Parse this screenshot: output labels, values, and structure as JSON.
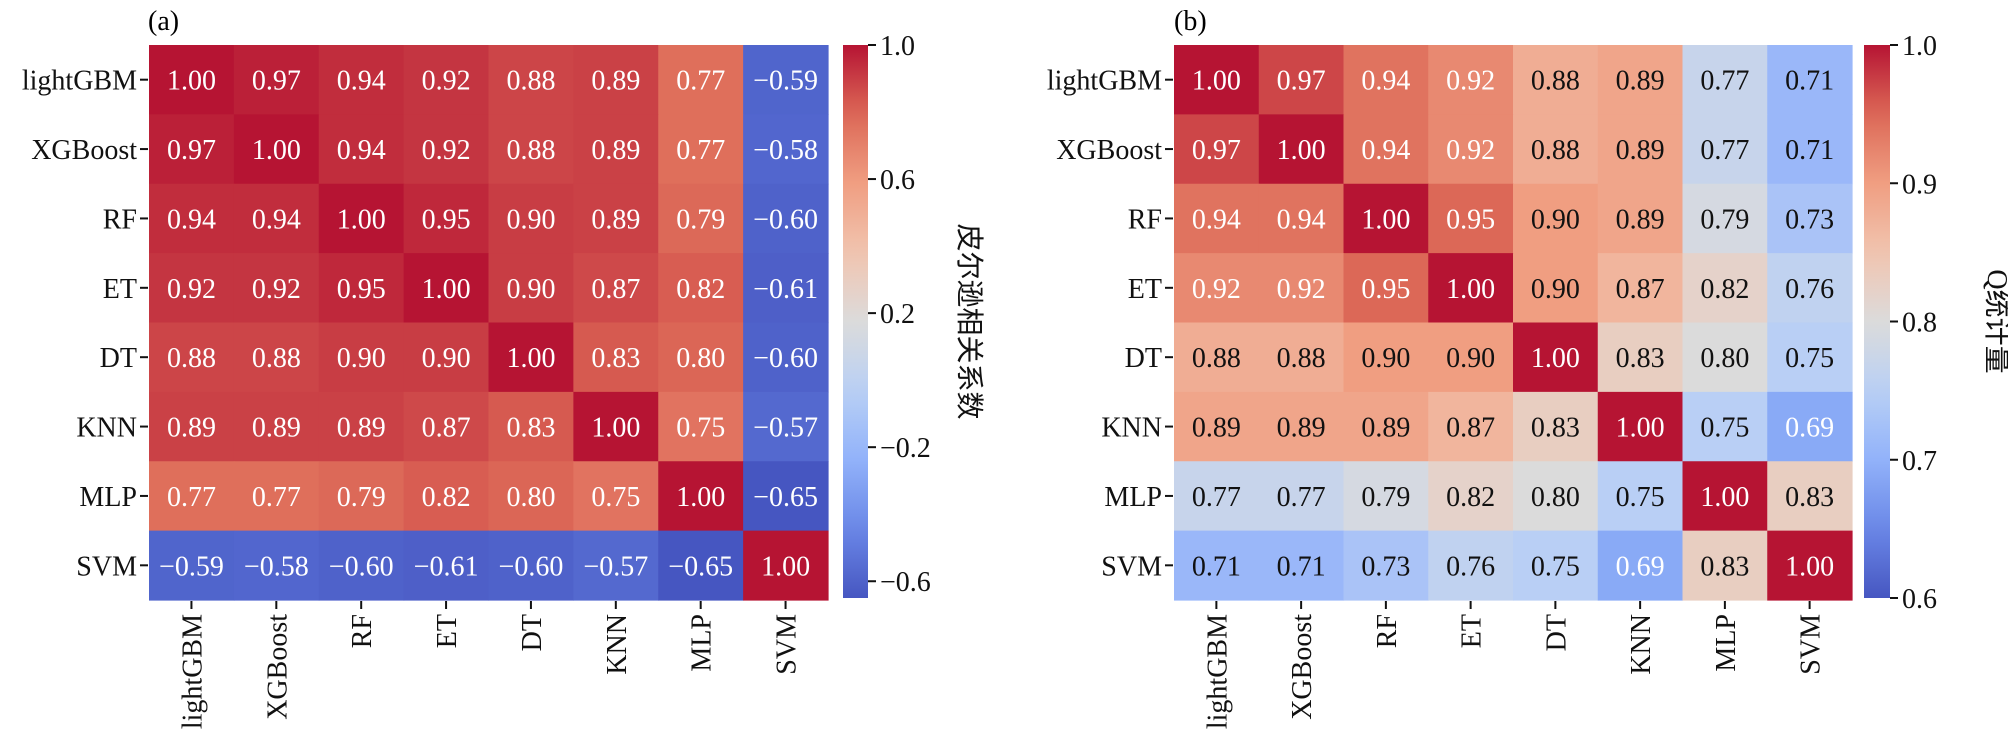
{
  "figure": {
    "panels": [
      "(a)",
      "(b)"
    ]
  },
  "chart_data": [
    {
      "type": "heatmap",
      "panel_label": "(a)",
      "title": "",
      "colormap": "coolwarm",
      "x_categories": [
        "lightGBM",
        "XGBoost",
        "RF",
        "ET",
        "DT",
        "KNN",
        "MLP",
        "SVM"
      ],
      "y_categories": [
        "lightGBM",
        "XGBoost",
        "RF",
        "ET",
        "DT",
        "KNN",
        "MLP",
        "SVM"
      ],
      "values": [
        [
          1.0,
          0.97,
          0.94,
          0.92,
          0.88,
          0.89,
          0.77,
          -0.59
        ],
        [
          0.97,
          1.0,
          0.94,
          0.92,
          0.88,
          0.89,
          0.77,
          -0.58
        ],
        [
          0.94,
          0.94,
          1.0,
          0.95,
          0.9,
          0.89,
          0.79,
          -0.6
        ],
        [
          0.92,
          0.92,
          0.95,
          1.0,
          0.9,
          0.87,
          0.82,
          -0.61
        ],
        [
          0.88,
          0.88,
          0.9,
          0.9,
          1.0,
          0.83,
          0.8,
          -0.6
        ],
        [
          0.89,
          0.89,
          0.89,
          0.87,
          0.83,
          1.0,
          0.75,
          -0.57
        ],
        [
          0.77,
          0.77,
          0.79,
          0.82,
          0.8,
          0.75,
          1.0,
          -0.65
        ],
        [
          -0.59,
          -0.58,
          -0.6,
          -0.61,
          -0.6,
          -0.57,
          -0.65,
          1.0
        ]
      ],
      "value_labels": [
        [
          "1.00",
          "0.97",
          "0.94",
          "0.92",
          "0.88",
          "0.89",
          "0.77",
          "−0.59"
        ],
        [
          "0.97",
          "1.00",
          "0.94",
          "0.92",
          "0.88",
          "0.89",
          "0.77",
          "−0.58"
        ],
        [
          "0.94",
          "0.94",
          "1.00",
          "0.95",
          "0.90",
          "0.89",
          "0.79",
          "−0.60"
        ],
        [
          "0.92",
          "0.92",
          "0.95",
          "1.00",
          "0.90",
          "0.87",
          "0.82",
          "−0.61"
        ],
        [
          "0.88",
          "0.88",
          "0.90",
          "0.90",
          "1.00",
          "0.83",
          "0.80",
          "−0.60"
        ],
        [
          "0.89",
          "0.89",
          "0.89",
          "0.87",
          "0.83",
          "1.00",
          "0.75",
          "−0.57"
        ],
        [
          "0.77",
          "0.77",
          "0.79",
          "0.82",
          "0.80",
          "0.75",
          "1.00",
          "−0.65"
        ],
        [
          "−0.59",
          "−0.58",
          "−0.60",
          "−0.61",
          "−0.60",
          "−0.57",
          "−0.65",
          "1.00"
        ]
      ],
      "colorbar": {
        "label": "皮尔逊相关系数",
        "vmin": -0.65,
        "vmax": 1.0,
        "ticks": [
          1.0,
          0.6,
          0.2,
          -0.2,
          -0.6
        ],
        "tick_labels": [
          "1.0",
          "0.6",
          "0.2",
          "−0.2",
          "−0.6"
        ]
      }
    },
    {
      "type": "heatmap",
      "panel_label": "(b)",
      "title": "",
      "colormap": "coolwarm",
      "x_categories": [
        "lightGBM",
        "XGBoost",
        "RF",
        "ET",
        "DT",
        "KNN",
        "MLP",
        "SVM"
      ],
      "y_categories": [
        "lightGBM",
        "XGBoost",
        "RF",
        "ET",
        "DT",
        "KNN",
        "MLP",
        "SVM"
      ],
      "values": [
        [
          1.0,
          0.97,
          0.94,
          0.92,
          0.88,
          0.89,
          0.77,
          0.71
        ],
        [
          0.97,
          1.0,
          0.94,
          0.92,
          0.88,
          0.89,
          0.77,
          0.71
        ],
        [
          0.94,
          0.94,
          1.0,
          0.95,
          0.9,
          0.89,
          0.79,
          0.73
        ],
        [
          0.92,
          0.92,
          0.95,
          1.0,
          0.9,
          0.87,
          0.82,
          0.76
        ],
        [
          0.88,
          0.88,
          0.9,
          0.9,
          1.0,
          0.83,
          0.8,
          0.75
        ],
        [
          0.89,
          0.89,
          0.89,
          0.87,
          0.83,
          1.0,
          0.75,
          0.69
        ],
        [
          0.77,
          0.77,
          0.79,
          0.82,
          0.8,
          0.75,
          1.0,
          0.83
        ],
        [
          0.71,
          0.71,
          0.73,
          0.76,
          0.75,
          0.69,
          0.83,
          1.0
        ]
      ],
      "value_labels": [
        [
          "1.00",
          "0.97",
          "0.94",
          "0.92",
          "0.88",
          "0.89",
          "0.77",
          "0.71"
        ],
        [
          "0.97",
          "1.00",
          "0.94",
          "0.92",
          "0.88",
          "0.89",
          "0.77",
          "0.71"
        ],
        [
          "0.94",
          "0.94",
          "1.00",
          "0.95",
          "0.90",
          "0.89",
          "0.79",
          "0.73"
        ],
        [
          "0.92",
          "0.92",
          "0.95",
          "1.00",
          "0.90",
          "0.87",
          "0.82",
          "0.76"
        ],
        [
          "0.88",
          "0.88",
          "0.90",
          "0.90",
          "1.00",
          "0.83",
          "0.80",
          "0.75"
        ],
        [
          "0.89",
          "0.89",
          "0.89",
          "0.87",
          "0.83",
          "1.00",
          "0.75",
          "0.69"
        ],
        [
          "0.77",
          "0.77",
          "0.79",
          "0.82",
          "0.80",
          "0.75",
          "1.00",
          "0.83"
        ],
        [
          "0.71",
          "0.71",
          "0.73",
          "0.76",
          "0.75",
          "0.69",
          "0.83",
          "1.00"
        ]
      ],
      "colorbar": {
        "label": "Q统计量",
        "vmin": 0.6,
        "vmax": 1.0,
        "ticks": [
          1.0,
          0.9,
          0.8,
          0.7,
          0.6
        ],
        "tick_labels": [
          "1.0",
          "0.9",
          "0.8",
          "0.7",
          "0.6"
        ]
      }
    }
  ]
}
